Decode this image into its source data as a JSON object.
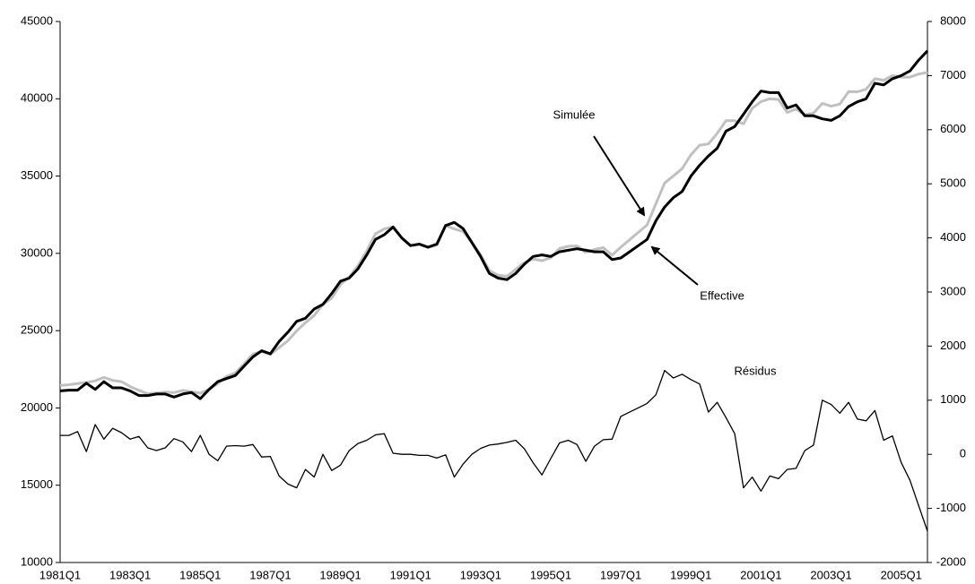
{
  "chart_data": {
    "type": "line",
    "categories": [
      "1981Q1",
      null,
      null,
      null,
      null,
      null,
      null,
      null,
      "1983Q1",
      null,
      null,
      null,
      null,
      null,
      null,
      null,
      "1985Q1",
      null,
      null,
      null,
      null,
      null,
      null,
      null,
      "1987Q1",
      null,
      null,
      null,
      null,
      null,
      null,
      null,
      "1989Q1",
      null,
      null,
      null,
      null,
      null,
      null,
      null,
      "1991Q1",
      null,
      null,
      null,
      null,
      null,
      null,
      null,
      "1993Q1",
      null,
      null,
      null,
      null,
      null,
      null,
      null,
      "1995Q1",
      null,
      null,
      null,
      null,
      null,
      null,
      null,
      "1997Q1",
      null,
      null,
      null,
      null,
      null,
      null,
      null,
      "1999Q1",
      null,
      null,
      null,
      null,
      null,
      null,
      null,
      "2001Q1",
      null,
      null,
      null,
      null,
      null,
      null,
      null,
      "2003Q1",
      null,
      null,
      null,
      null,
      null,
      null,
      null,
      "2005Q1",
      null,
      null,
      null
    ],
    "series": [
      {
        "name": "Simulée",
        "color": "#c0c0c0",
        "axis": "y",
        "values": [
          21450,
          21500,
          21570,
          21650,
          21750,
          21980,
          21780,
          21700,
          21380,
          21130,
          20920,
          20970,
          21020,
          20990,
          21130,
          21050,
          20950,
          21200,
          21580,
          22050,
          22260,
          22850,
          23480,
          23650,
          23460,
          23900,
          24350,
          24980,
          25520,
          25980,
          26700,
          27100,
          28000,
          28470,
          29200,
          30160,
          31260,
          31580,
          31720,
          31000,
          30500,
          30580,
          30380,
          30530,
          31790,
          31580,
          31420,
          30700,
          29910,
          28870,
          28590,
          28520,
          28960,
          29400,
          29640,
          29520,
          29720,
          30310,
          30460,
          30480,
          30070,
          30250,
          30370,
          29880,
          30400,
          30880,
          31360,
          31840,
          33200,
          34550,
          35010,
          35480,
          36380,
          37000,
          37080,
          37760,
          38580,
          38580,
          38380,
          39380,
          39820,
          40000,
          39950,
          39120,
          39340,
          38970,
          39070,
          39700,
          39520,
          39660,
          40460,
          40450,
          40620,
          41300,
          41200,
          41500,
          41400,
          41400,
          41600,
          41700
        ]
      },
      {
        "name": "Effective",
        "color": "#000000",
        "axis": "y",
        "values": [
          21100,
          21150,
          21150,
          21600,
          21200,
          21700,
          21300,
          21300,
          21100,
          20800,
          20800,
          20900,
          20900,
          20700,
          20900,
          21000,
          20600,
          21200,
          21700,
          21900,
          22100,
          22700,
          23300,
          23700,
          23500,
          24300,
          24900,
          25600,
          25800,
          26400,
          26700,
          27400,
          28200,
          28400,
          29000,
          29900,
          30900,
          31200,
          31700,
          31000,
          30500,
          30600,
          30400,
          30600,
          31800,
          32000,
          31600,
          30700,
          29800,
          28700,
          28400,
          28300,
          28700,
          29300,
          29800,
          29900,
          29800,
          30100,
          30200,
          30300,
          30200,
          30100,
          30100,
          29600,
          29700,
          30100,
          30500,
          30900,
          32100,
          33000,
          33600,
          34000,
          35000,
          35700,
          36300,
          36800,
          37900,
          38200,
          39000,
          39800,
          40500,
          40400,
          40400,
          39400,
          39600,
          38900,
          38900,
          38700,
          38600,
          38900,
          39500,
          39800,
          40000,
          41000,
          40900,
          41300,
          41500,
          41800,
          42500,
          43100
        ]
      },
      {
        "name": "Résidus",
        "color": "#000000",
        "axis": "y2",
        "values": [
          350,
          350,
          420,
          50,
          550,
          280,
          480,
          400,
          280,
          330,
          120,
          70,
          120,
          290,
          230,
          50,
          350,
          0,
          -120,
          150,
          160,
          150,
          180,
          -50,
          -40,
          -400,
          -550,
          -620,
          -280,
          -420,
          0,
          -300,
          -200,
          70,
          200,
          260,
          360,
          380,
          20,
          0,
          0,
          -20,
          -20,
          -70,
          -10,
          -420,
          -180,
          0,
          110,
          170,
          190,
          220,
          260,
          100,
          -160,
          -380,
          -80,
          210,
          260,
          180,
          -130,
          150,
          270,
          280,
          700,
          780,
          860,
          940,
          1100,
          1550,
          1410,
          1480,
          1380,
          1300,
          780,
          960,
          680,
          380,
          -620,
          -420,
          -680,
          -400,
          -450,
          -280,
          -260,
          70,
          170,
          1000,
          920,
          760,
          960,
          650,
          620,
          810,
          260,
          340,
          -150,
          -480,
          -950,
          -1420
        ]
      }
    ],
    "ylim": [
      10000,
      45000
    ],
    "yticks": [
      10000,
      15000,
      20000,
      25000,
      30000,
      35000,
      40000,
      45000
    ],
    "y2lim": [
      -2000,
      8000
    ],
    "y2ticks": [
      -2000,
      -1000,
      0,
      1000,
      2000,
      3000,
      4000,
      5000,
      6000,
      7000,
      8000
    ],
    "grid": false
  }
}
